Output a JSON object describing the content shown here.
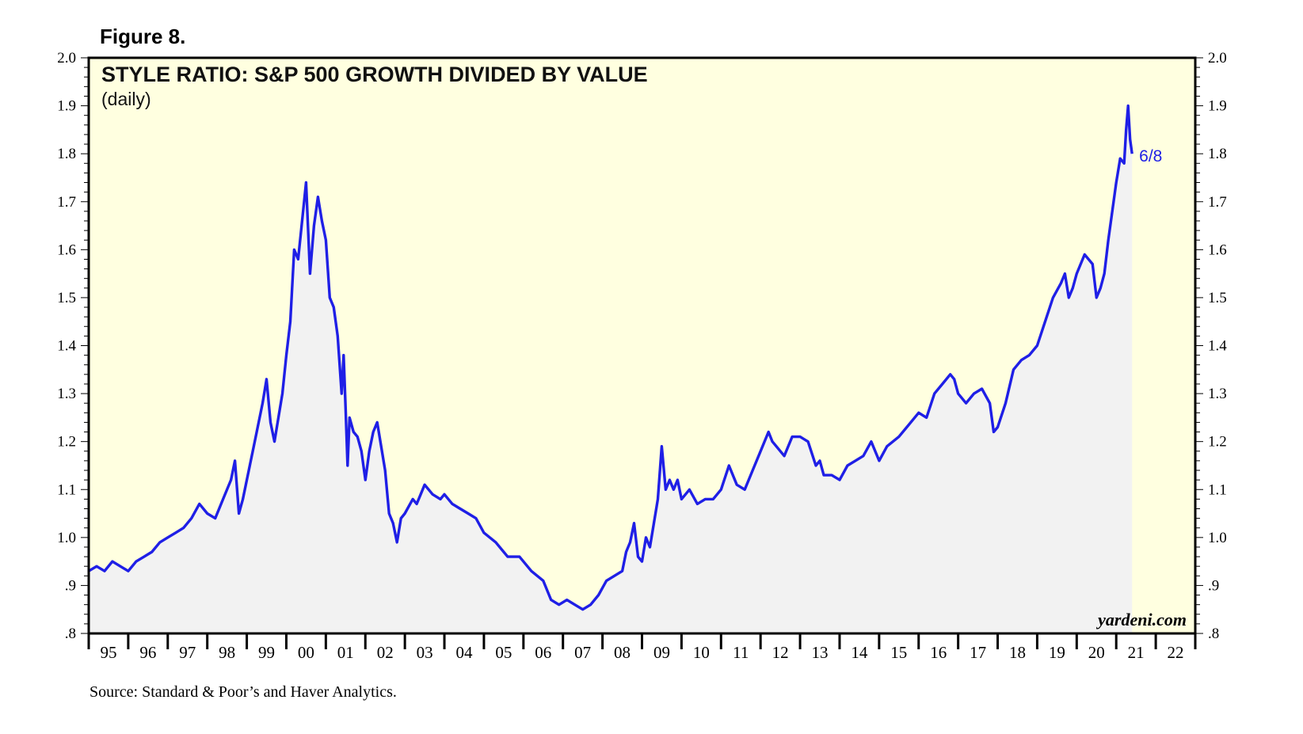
{
  "figure_label": "Figure 8.",
  "source": "Source: Standard & Poor’s and Haver Analytics.",
  "brand": "yardeni.com",
  "colors": {
    "plot_background": "#ffffe0",
    "area_fill": "#f2f2f2",
    "line": "#1f1fe6",
    "frame": "#000000"
  },
  "chart_data": {
    "type": "line",
    "title": "STYLE RATIO: S&P 500 GROWTH DIVIDED BY VALUE",
    "subtitle": "(daily)",
    "xlabel": "",
    "ylabel": "",
    "ylim": [
      0.8,
      2.0
    ],
    "xlim": [
      1995,
      2023
    ],
    "yticks": [
      0.8,
      0.9,
      1.0,
      1.1,
      1.2,
      1.3,
      1.4,
      1.5,
      1.6,
      1.7,
      1.8,
      1.9,
      2.0
    ],
    "ytick_labels": [
      ".8",
      ".9",
      "1.0",
      "1.1",
      "1.2",
      "1.3",
      "1.4",
      "1.5",
      "1.6",
      "1.7",
      "1.8",
      "1.9",
      "2.0"
    ],
    "xtick_labels": [
      "95",
      "96",
      "97",
      "98",
      "99",
      "00",
      "01",
      "02",
      "03",
      "04",
      "05",
      "06",
      "07",
      "08",
      "09",
      "10",
      "11",
      "12",
      "13",
      "14",
      "15",
      "16",
      "17",
      "18",
      "19",
      "20",
      "21",
      "22"
    ],
    "end_annotation": "6/8",
    "series": [
      {
        "name": "Style ratio: S&P 500 Growth / Value (daily)",
        "points": [
          [
            1995.0,
            0.93
          ],
          [
            1995.2,
            0.94
          ],
          [
            1995.4,
            0.93
          ],
          [
            1995.6,
            0.95
          ],
          [
            1995.8,
            0.94
          ],
          [
            1996.0,
            0.93
          ],
          [
            1996.2,
            0.95
          ],
          [
            1996.4,
            0.96
          ],
          [
            1996.6,
            0.97
          ],
          [
            1996.8,
            0.99
          ],
          [
            1997.0,
            1.0
          ],
          [
            1997.2,
            1.01
          ],
          [
            1997.4,
            1.02
          ],
          [
            1997.6,
            1.04
          ],
          [
            1997.8,
            1.07
          ],
          [
            1998.0,
            1.05
          ],
          [
            1998.2,
            1.04
          ],
          [
            1998.4,
            1.08
          ],
          [
            1998.6,
            1.12
          ],
          [
            1998.7,
            1.16
          ],
          [
            1998.8,
            1.05
          ],
          [
            1998.9,
            1.08
          ],
          [
            1999.0,
            1.12
          ],
          [
            1999.2,
            1.2
          ],
          [
            1999.4,
            1.28
          ],
          [
            1999.5,
            1.33
          ],
          [
            1999.6,
            1.24
          ],
          [
            1999.7,
            1.2
          ],
          [
            1999.8,
            1.25
          ],
          [
            1999.9,
            1.3
          ],
          [
            2000.0,
            1.38
          ],
          [
            2000.1,
            1.45
          ],
          [
            2000.2,
            1.6
          ],
          [
            2000.3,
            1.58
          ],
          [
            2000.4,
            1.66
          ],
          [
            2000.5,
            1.74
          ],
          [
            2000.6,
            1.55
          ],
          [
            2000.7,
            1.65
          ],
          [
            2000.8,
            1.71
          ],
          [
            2000.9,
            1.66
          ],
          [
            2001.0,
            1.62
          ],
          [
            2001.1,
            1.5
          ],
          [
            2001.2,
            1.48
          ],
          [
            2001.3,
            1.42
          ],
          [
            2001.4,
            1.3
          ],
          [
            2001.45,
            1.38
          ],
          [
            2001.5,
            1.27
          ],
          [
            2001.55,
            1.15
          ],
          [
            2001.6,
            1.25
          ],
          [
            2001.7,
            1.22
          ],
          [
            2001.8,
            1.21
          ],
          [
            2001.9,
            1.18
          ],
          [
            2002.0,
            1.12
          ],
          [
            2002.1,
            1.18
          ],
          [
            2002.2,
            1.22
          ],
          [
            2002.3,
            1.24
          ],
          [
            2002.4,
            1.19
          ],
          [
            2002.5,
            1.14
          ],
          [
            2002.6,
            1.05
          ],
          [
            2002.7,
            1.03
          ],
          [
            2002.8,
            0.99
          ],
          [
            2002.9,
            1.04
          ],
          [
            2003.0,
            1.05
          ],
          [
            2003.2,
            1.08
          ],
          [
            2003.3,
            1.07
          ],
          [
            2003.4,
            1.09
          ],
          [
            2003.5,
            1.11
          ],
          [
            2003.7,
            1.09
          ],
          [
            2003.9,
            1.08
          ],
          [
            2004.0,
            1.09
          ],
          [
            2004.2,
            1.07
          ],
          [
            2004.4,
            1.06
          ],
          [
            2004.6,
            1.05
          ],
          [
            2004.8,
            1.04
          ],
          [
            2005.0,
            1.01
          ],
          [
            2005.3,
            0.99
          ],
          [
            2005.6,
            0.96
          ],
          [
            2005.9,
            0.96
          ],
          [
            2006.2,
            0.93
          ],
          [
            2006.5,
            0.91
          ],
          [
            2006.7,
            0.87
          ],
          [
            2006.9,
            0.86
          ],
          [
            2007.1,
            0.87
          ],
          [
            2007.3,
            0.86
          ],
          [
            2007.5,
            0.85
          ],
          [
            2007.7,
            0.86
          ],
          [
            2007.9,
            0.88
          ],
          [
            2008.1,
            0.91
          ],
          [
            2008.3,
            0.92
          ],
          [
            2008.5,
            0.93
          ],
          [
            2008.6,
            0.97
          ],
          [
            2008.7,
            0.99
          ],
          [
            2008.8,
            1.03
          ],
          [
            2008.9,
            0.96
          ],
          [
            2009.0,
            0.95
          ],
          [
            2009.1,
            1.0
          ],
          [
            2009.2,
            0.98
          ],
          [
            2009.3,
            1.03
          ],
          [
            2009.4,
            1.08
          ],
          [
            2009.5,
            1.19
          ],
          [
            2009.6,
            1.1
          ],
          [
            2009.7,
            1.12
          ],
          [
            2009.8,
            1.1
          ],
          [
            2009.9,
            1.12
          ],
          [
            2010.0,
            1.08
          ],
          [
            2010.2,
            1.1
          ],
          [
            2010.4,
            1.07
          ],
          [
            2010.6,
            1.08
          ],
          [
            2010.8,
            1.08
          ],
          [
            2011.0,
            1.1
          ],
          [
            2011.2,
            1.15
          ],
          [
            2011.4,
            1.11
          ],
          [
            2011.6,
            1.1
          ],
          [
            2011.8,
            1.14
          ],
          [
            2012.0,
            1.18
          ],
          [
            2012.2,
            1.22
          ],
          [
            2012.3,
            1.2
          ],
          [
            2012.4,
            1.19
          ],
          [
            2012.6,
            1.17
          ],
          [
            2012.8,
            1.21
          ],
          [
            2013.0,
            1.21
          ],
          [
            2013.2,
            1.2
          ],
          [
            2013.4,
            1.15
          ],
          [
            2013.5,
            1.16
          ],
          [
            2013.6,
            1.13
          ],
          [
            2013.8,
            1.13
          ],
          [
            2014.0,
            1.12
          ],
          [
            2014.2,
            1.15
          ],
          [
            2014.4,
            1.16
          ],
          [
            2014.6,
            1.17
          ],
          [
            2014.8,
            1.2
          ],
          [
            2015.0,
            1.16
          ],
          [
            2015.2,
            1.19
          ],
          [
            2015.5,
            1.21
          ],
          [
            2015.8,
            1.24
          ],
          [
            2016.0,
            1.26
          ],
          [
            2016.2,
            1.25
          ],
          [
            2016.4,
            1.3
          ],
          [
            2016.6,
            1.32
          ],
          [
            2016.8,
            1.34
          ],
          [
            2016.9,
            1.33
          ],
          [
            2017.0,
            1.3
          ],
          [
            2017.2,
            1.28
          ],
          [
            2017.4,
            1.3
          ],
          [
            2017.6,
            1.31
          ],
          [
            2017.8,
            1.28
          ],
          [
            2017.9,
            1.22
          ],
          [
            2018.0,
            1.23
          ],
          [
            2018.2,
            1.28
          ],
          [
            2018.4,
            1.35
          ],
          [
            2018.6,
            1.37
          ],
          [
            2018.8,
            1.38
          ],
          [
            2019.0,
            1.4
          ],
          [
            2019.2,
            1.45
          ],
          [
            2019.4,
            1.5
          ],
          [
            2019.6,
            1.53
          ],
          [
            2019.7,
            1.55
          ],
          [
            2019.8,
            1.5
          ],
          [
            2019.9,
            1.52
          ],
          [
            2020.0,
            1.55
          ],
          [
            2020.2,
            1.59
          ],
          [
            2020.4,
            1.57
          ],
          [
            2020.5,
            1.5
          ],
          [
            2020.6,
            1.52
          ],
          [
            2020.7,
            1.55
          ],
          [
            2020.8,
            1.62
          ],
          [
            2020.9,
            1.68
          ],
          [
            2021.0,
            1.74
          ],
          [
            2021.1,
            1.79
          ],
          [
            2021.2,
            1.78
          ],
          [
            2021.25,
            1.85
          ],
          [
            2021.3,
            1.9
          ],
          [
            2021.35,
            1.83
          ],
          [
            2021.4,
            1.8
          ]
        ]
      }
    ]
  }
}
